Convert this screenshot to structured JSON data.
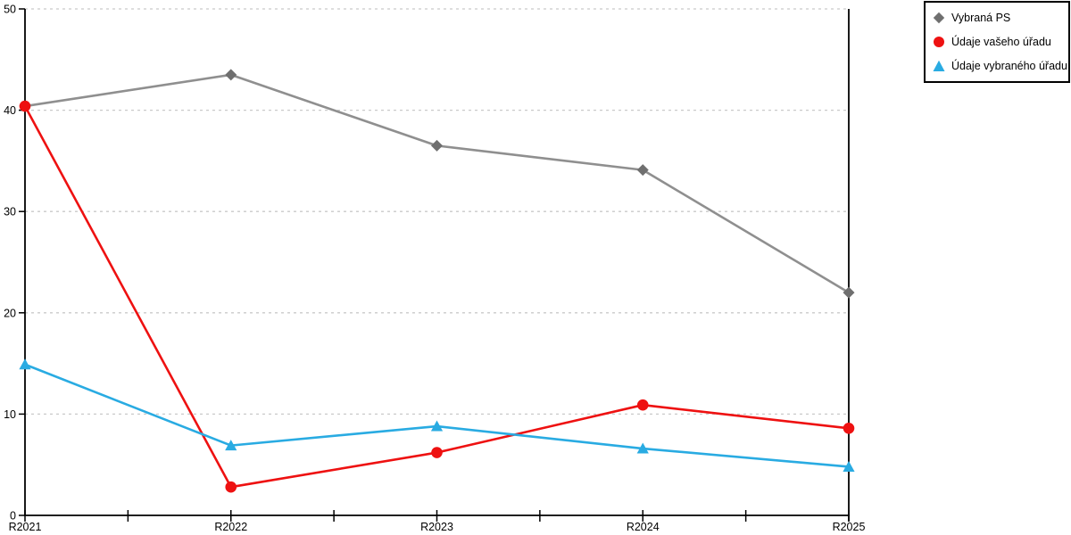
{
  "chart_data": {
    "type": "line",
    "title": "",
    "xlabel": "",
    "ylabel": "",
    "categories": [
      "R2021",
      "R2022",
      "R2023",
      "R2024",
      "R2025"
    ],
    "ylim": [
      0,
      50
    ],
    "yticks": [
      0,
      10,
      20,
      30,
      40,
      50
    ],
    "grid": "horizontal-dashed",
    "legend_position": "top-right-outside",
    "series": [
      {
        "name": "Vybraná PS",
        "marker": "diamond",
        "color": "#8f8f8f",
        "marker_color": "#6f6f6f",
        "values": [
          40.4,
          43.5,
          36.5,
          34.1,
          22.0
        ]
      },
      {
        "name": "Údaje vašeho úřadu",
        "marker": "circle",
        "color": "#ee1111",
        "marker_color": "#ee1111",
        "values": [
          40.4,
          2.8,
          6.2,
          10.9,
          8.6
        ]
      },
      {
        "name": "Údaje vybraného úřadu",
        "marker": "triangle",
        "color": "#29abe2",
        "marker_color": "#29abe2",
        "values": [
          14.9,
          6.9,
          8.8,
          6.6,
          4.8
        ]
      }
    ],
    "colors": {
      "axis": "#000000",
      "grid": "#c9c9c9",
      "background": "#ffffff",
      "tick_label": "#000000"
    }
  }
}
